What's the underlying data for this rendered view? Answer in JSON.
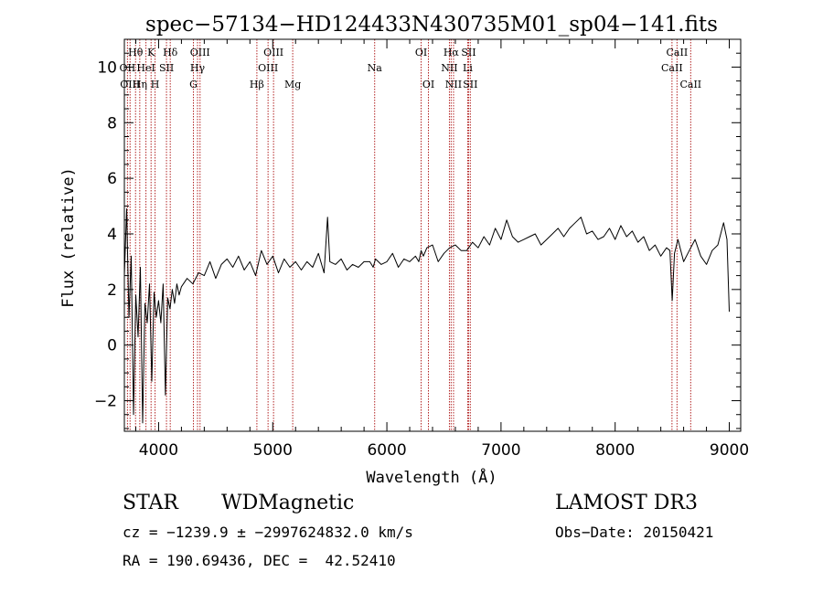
{
  "chart_data": {
    "type": "line",
    "title": "spec−57134−HD124433N430735M01_sp04−141.fits",
    "xlabel": "Wavelength (Å)",
    "ylabel": "Flux (relative)",
    "xlim": [
      3700,
      9100
    ],
    "ylim": [
      -3.1,
      11.0
    ],
    "xticks": [
      4000,
      5000,
      6000,
      7000,
      8000,
      9000
    ],
    "xtick_labels": [
      "4000",
      "5000",
      "6000",
      "7000",
      "8000",
      "9000"
    ],
    "yticks": [
      -2,
      0,
      2,
      4,
      6,
      8,
      10
    ],
    "ytick_labels": [
      "−2",
      "0",
      "2",
      "4",
      "6",
      "8",
      "10"
    ],
    "grid": false,
    "colors": {
      "spectrum": "#000000",
      "lines": "#b22222",
      "frame": "#000000"
    },
    "series": [
      {
        "x": [
          3700,
          3720,
          3740,
          3760,
          3780,
          3800,
          3820,
          3840,
          3860,
          3880,
          3900,
          3920,
          3940,
          3960,
          3980,
          4000,
          4020,
          4040,
          4060,
          4080,
          4100,
          4120,
          4140,
          4160,
          4180,
          4200,
          4250,
          4300,
          4350,
          4400,
          4450,
          4500,
          4550,
          4600,
          4650,
          4700,
          4750,
          4800,
          4850,
          4900,
          4950,
          5000,
          5050,
          5100,
          5150,
          5200,
          5250,
          5300,
          5350,
          5400,
          5450,
          5480,
          5500,
          5550,
          5600,
          5650,
          5700,
          5750,
          5800,
          5850,
          5880,
          5900,
          5950,
          6000,
          6050,
          6100,
          6150,
          6200,
          6250,
          6280,
          6300,
          6320,
          6350,
          6400,
          6450,
          6500,
          6550,
          6600,
          6650,
          6700,
          6750,
          6800,
          6850,
          6900,
          6950,
          7000,
          7050,
          7100,
          7150,
          7200,
          7250,
          7300,
          7350,
          7400,
          7450,
          7500,
          7550,
          7600,
          7650,
          7700,
          7750,
          7800,
          7850,
          7900,
          7950,
          8000,
          8050,
          8100,
          8150,
          8200,
          8250,
          8300,
          8350,
          8400,
          8450,
          8480,
          8500,
          8520,
          8550,
          8600,
          8650,
          8700,
          8750,
          8800,
          8850,
          8900,
          8950,
          8980,
          9000
        ],
        "y": [
          2.5,
          4.9,
          1.0,
          3.2,
          -2.5,
          1.8,
          0.3,
          2.8,
          -2.8,
          1.5,
          0.8,
          2.2,
          -1.3,
          1.9,
          1.0,
          1.6,
          0.8,
          2.2,
          -1.8,
          1.7,
          1.3,
          2.0,
          1.5,
          2.2,
          1.8,
          2.1,
          2.4,
          2.2,
          2.6,
          2.5,
          3.0,
          2.4,
          2.9,
          3.1,
          2.8,
          3.2,
          2.7,
          3.0,
          2.5,
          3.4,
          2.9,
          3.2,
          2.6,
          3.1,
          2.8,
          3.0,
          2.7,
          3.0,
          2.8,
          3.3,
          2.6,
          4.6,
          3.0,
          2.9,
          3.1,
          2.7,
          2.9,
          2.8,
          3.0,
          3.0,
          2.8,
          3.1,
          2.9,
          3.0,
          3.3,
          2.8,
          3.1,
          3.0,
          3.2,
          3.0,
          3.4,
          3.2,
          3.5,
          3.6,
          3.0,
          3.3,
          3.5,
          3.6,
          3.4,
          3.4,
          3.7,
          3.5,
          3.9,
          3.6,
          4.2,
          3.8,
          4.5,
          3.9,
          3.7,
          3.8,
          3.9,
          4.0,
          3.6,
          3.8,
          4.0,
          4.2,
          3.9,
          4.2,
          4.4,
          4.6,
          4.0,
          4.1,
          3.8,
          3.9,
          4.2,
          3.8,
          4.3,
          3.9,
          4.1,
          3.7,
          3.9,
          3.4,
          3.6,
          3.2,
          3.5,
          3.4,
          1.6,
          3.3,
          3.8,
          3.0,
          3.4,
          3.8,
          3.2,
          2.9,
          3.4,
          3.6,
          4.4,
          3.8,
          1.2
        ]
      }
    ],
    "line_markers": [
      {
        "label": "Hθ",
        "wavelength": 3798,
        "row": 1
      },
      {
        "label": "OII",
        "wavelength": 3727,
        "row": 2
      },
      {
        "label": "OIII",
        "wavelength": 3750,
        "row": 3
      },
      {
        "label": "K",
        "wavelength": 3934,
        "row": 1
      },
      {
        "label": "HeI",
        "wavelength": 3889,
        "row": 2
      },
      {
        "label": "Hη",
        "wavelength": 3835,
        "row": 3
      },
      {
        "label": "Hδ",
        "wavelength": 4102,
        "row": 1
      },
      {
        "label": "SII",
        "wavelength": 4069,
        "row": 2
      },
      {
        "label": "H",
        "wavelength": 3969,
        "row": 3
      },
      {
        "label": "OIII",
        "wavelength": 4363,
        "row": 1
      },
      {
        "label": "Hγ",
        "wavelength": 4341,
        "row": 2
      },
      {
        "label": "G",
        "wavelength": 4305,
        "row": 3
      },
      {
        "label": "OIII",
        "wavelength": 5007,
        "row": 1
      },
      {
        "label": "OIII",
        "wavelength": 4959,
        "row": 2
      },
      {
        "label": "Hβ",
        "wavelength": 4861,
        "row": 3
      },
      {
        "label": "Mg",
        "wavelength": 5175,
        "row": 3
      },
      {
        "label": "Na",
        "wavelength": 5893,
        "row": 2
      },
      {
        "label": "OI",
        "wavelength": 6300,
        "row": 1
      },
      {
        "label": "OI",
        "wavelength": 6364,
        "row": 3
      },
      {
        "label": "Hα",
        "wavelength": 6563,
        "row": 1
      },
      {
        "label": "NII",
        "wavelength": 6548,
        "row": 2
      },
      {
        "label": "NII",
        "wavelength": 6584,
        "row": 3
      },
      {
        "label": "SII",
        "wavelength": 6716,
        "row": 1
      },
      {
        "label": "Li",
        "wavelength": 6708,
        "row": 2
      },
      {
        "label": "SII",
        "wavelength": 6731,
        "row": 3
      },
      {
        "label": "CaII",
        "wavelength": 8542,
        "row": 1
      },
      {
        "label": "CaII",
        "wavelength": 8498,
        "row": 2
      },
      {
        "label": "CaII",
        "wavelength": 8662,
        "row": 3
      }
    ]
  },
  "info": {
    "object_class": "STAR",
    "subclass": "WDMagnetic",
    "survey": "LAMOST DR3",
    "redshift_line": "cz = −1239.9 ± −2997624832.0 km/s",
    "obs_date": "Obs−Date: 20150421",
    "coords": "RA = 190.69436, DEC =  42.52410"
  }
}
